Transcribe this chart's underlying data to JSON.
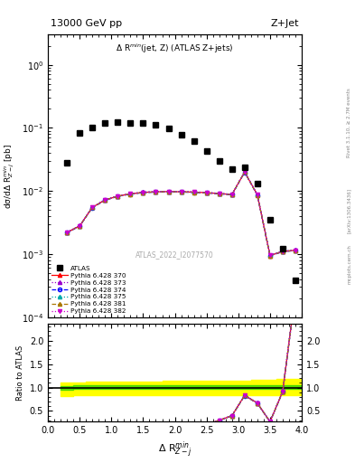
{
  "title_left": "13000 GeV pp",
  "title_right": "Z+Jet",
  "plot_title": "Δ R$^{min}$(jet, Z) (ATLAS Z+jets)",
  "xlabel": "Δ R$^{min}_{Z-j}$",
  "ylabel_main": "dσ/dΔ R$^{min}_{Z-j}$ [pb]",
  "ylabel_ratio": "Ratio to ATLAS",
  "watermark": "ATLAS_2022_I2077570",
  "right_label": "Rivet 3.1.10, ≥ 2.7M events",
  "arxiv_label": "[arXiv:1306.3436]",
  "mcplots_label": "mcplots.cern.ch",
  "x_centers": [
    0.3,
    0.5,
    0.7,
    0.9,
    1.1,
    1.3,
    1.5,
    1.7,
    1.9,
    2.1,
    2.3,
    2.5,
    2.7,
    2.9,
    3.1,
    3.3,
    3.5,
    3.7,
    3.9
  ],
  "atlas_y": [
    0.028,
    0.083,
    0.102,
    0.118,
    0.122,
    0.12,
    0.118,
    0.112,
    0.098,
    0.079,
    0.062,
    0.043,
    0.03,
    0.022,
    0.024,
    0.013,
    0.0035,
    0.0012,
    0.00038
  ],
  "mc_base": [
    0.0022,
    0.0028,
    0.0055,
    0.0072,
    0.0083,
    0.009,
    0.0095,
    0.0097,
    0.0098,
    0.0097,
    0.0096,
    0.0094,
    0.0091,
    0.0088,
    0.02,
    0.0087,
    0.00095,
    0.0011,
    0.00115
  ],
  "mc_offsets": [
    1.0,
    1.01,
    0.99,
    1.005,
    0.995,
    1.002
  ],
  "ylim_main": [
    0.0001,
    3.0
  ],
  "ylim_ratio": [
    0.28,
    2.35
  ],
  "xlim": [
    0.0,
    4.0
  ],
  "yticks_ratio": [
    0.5,
    1.0,
    1.5,
    2.0
  ],
  "legend_entries": [
    "ATLAS",
    "Pythia 6.428 370",
    "Pythia 6.428 373",
    "Pythia 6.428 374",
    "Pythia 6.428 375",
    "Pythia 6.428 381",
    "Pythia 6.428 382"
  ],
  "colors_mc": [
    "#ff0000",
    "#9900cc",
    "#0000ff",
    "#00aaaa",
    "#aa7700",
    "#cc00cc"
  ],
  "linestyles_mc": [
    "-",
    ":",
    "--",
    ":",
    "--",
    ":"
  ],
  "markers_mc": [
    "^",
    "^",
    "o",
    "^",
    "^",
    "v"
  ],
  "green_band": [
    0.94,
    1.07
  ],
  "yellow_band_lo": [
    0.82,
    0.84,
    0.84,
    0.84,
    0.84,
    0.84,
    0.84,
    0.84,
    0.84,
    0.84,
    0.84,
    0.84,
    0.84,
    0.84,
    0.84,
    0.84,
    0.84,
    0.84,
    0.84
  ],
  "yellow_band_hi": [
    1.1,
    1.11,
    1.12,
    1.12,
    1.12,
    1.12,
    1.13,
    1.13,
    1.14,
    1.14,
    1.15,
    1.15,
    1.15,
    1.15,
    1.15,
    1.16,
    1.17,
    1.18,
    1.18
  ],
  "green_band_lo": [
    0.96,
    0.965,
    0.965,
    0.965,
    0.965,
    0.97,
    0.97,
    0.97,
    0.97,
    0.97,
    0.97,
    0.97,
    0.97,
    0.97,
    0.97,
    0.97,
    0.97,
    0.975,
    0.975
  ],
  "green_band_hi": [
    1.03,
    1.04,
    1.04,
    1.04,
    1.045,
    1.045,
    1.045,
    1.045,
    1.045,
    1.045,
    1.045,
    1.045,
    1.045,
    1.045,
    1.045,
    1.045,
    1.045,
    1.045,
    1.045
  ]
}
